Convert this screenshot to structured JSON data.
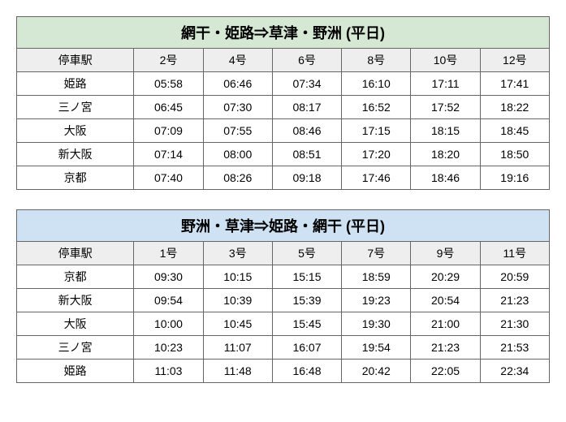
{
  "tables": [
    {
      "title": "網干・姫路⇒草津・野洲 (平日)",
      "title_bg": "#d5e8d4",
      "station_header": "停車駅",
      "train_headers": [
        "2号",
        "4号",
        "6号",
        "8号",
        "10号",
        "12号"
      ],
      "rows": [
        {
          "station": "姫路",
          "times": [
            "05:58",
            "06:46",
            "07:34",
            "16:10",
            "17:11",
            "17:41"
          ]
        },
        {
          "station": "三ノ宮",
          "times": [
            "06:45",
            "07:30",
            "08:17",
            "16:52",
            "17:52",
            "18:22"
          ]
        },
        {
          "station": "大阪",
          "times": [
            "07:09",
            "07:55",
            "08:46",
            "17:15",
            "18:15",
            "18:45"
          ]
        },
        {
          "station": "新大阪",
          "times": [
            "07:14",
            "08:00",
            "08:51",
            "17:20",
            "18:20",
            "18:50"
          ]
        },
        {
          "station": "京都",
          "times": [
            "07:40",
            "08:26",
            "09:18",
            "17:46",
            "18:46",
            "19:16"
          ]
        }
      ]
    },
    {
      "title": "野洲・草津⇒姫路・網干 (平日)",
      "title_bg": "#cfe2f3",
      "station_header": "停車駅",
      "train_headers": [
        "1号",
        "3号",
        "5号",
        "7号",
        "9号",
        "11号"
      ],
      "rows": [
        {
          "station": "京都",
          "times": [
            "09:30",
            "10:15",
            "15:15",
            "18:59",
            "20:29",
            "20:59"
          ]
        },
        {
          "station": "新大阪",
          "times": [
            "09:54",
            "10:39",
            "15:39",
            "19:23",
            "20:54",
            "21:23"
          ]
        },
        {
          "station": "大阪",
          "times": [
            "10:00",
            "10:45",
            "15:45",
            "19:30",
            "21:00",
            "21:30"
          ]
        },
        {
          "station": "三ノ宮",
          "times": [
            "10:23",
            "11:07",
            "16:07",
            "19:54",
            "21:23",
            "21:53"
          ]
        },
        {
          "station": "姫路",
          "times": [
            "11:03",
            "11:48",
            "16:48",
            "20:42",
            "22:05",
            "22:34"
          ]
        }
      ]
    }
  ]
}
